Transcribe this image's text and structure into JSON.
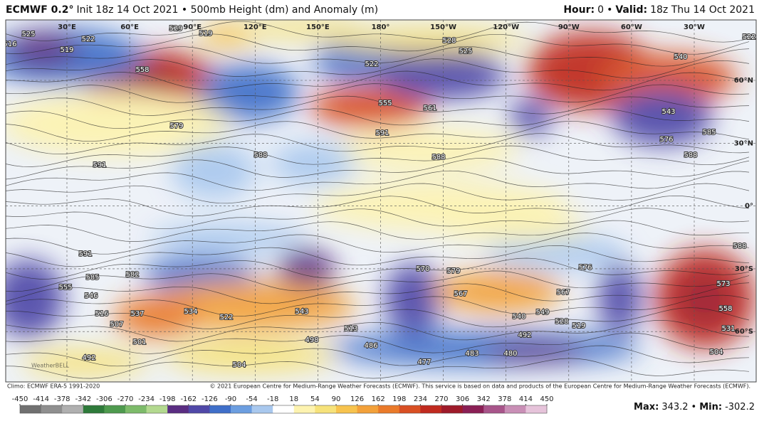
{
  "header": {
    "title": "ECMWF 0.2°",
    "subtitle": "Init 18z 14 Oct 2021 • 500mb Height (dm) and Anomaly (m)",
    "hour_label": "Hour:",
    "hour": "0",
    "separator": "•",
    "valid_label": "Valid:",
    "valid": "18z Thu 14 Oct 2021"
  },
  "map": {
    "longitudes": [
      "30°E",
      "60°E",
      "90°E",
      "120°E",
      "150°E",
      "180°",
      "150°W",
      "120°W",
      "90°W",
      "60°W",
      "30°W"
    ],
    "latitudes": [
      "60°N",
      "30°N",
      "0°",
      "30°S",
      "60°S"
    ],
    "watermark": "WeatherBELL",
    "contour_labels": [
      "525",
      "522",
      "519",
      "516",
      "558",
      "529",
      "519",
      "579",
      "588",
      "591",
      "522",
      "528",
      "525",
      "555",
      "561",
      "591",
      "588",
      "540",
      "576",
      "585",
      "588",
      "591",
      "585",
      "582",
      "555",
      "546",
      "516",
      "507",
      "537",
      "534",
      "522",
      "543",
      "513",
      "498",
      "486",
      "501",
      "492",
      "504",
      "477",
      "483",
      "480",
      "570",
      "579",
      "567",
      "540",
      "549",
      "528",
      "519",
      "492",
      "567",
      "576",
      "588",
      "573",
      "558",
      "531",
      "504",
      "543",
      "522"
    ]
  },
  "footer": {
    "climo": "Climo: ECMWF ERA-5 1991-2020",
    "copyright": "© 2021 European Centre for Medium-Range Weather Forecasts (ECMWF). This service is based on data and products of the European Centre for Medium-Range Weather Forecasts (ECMWF).",
    "max_label": "Max:",
    "max_value": 343.2,
    "separator": "•",
    "min_label": "Min:",
    "min_value": -302.2
  },
  "colorbar": {
    "ticks": [
      -450,
      -414,
      -378,
      -342,
      -306,
      -270,
      -234,
      -198,
      -162,
      -126,
      -90,
      -54,
      -18,
      18,
      54,
      90,
      126,
      162,
      198,
      234,
      270,
      306,
      342,
      378,
      414,
      450
    ],
    "colors": [
      "#707070",
      "#8f8f8f",
      "#b0b0b0",
      "#2e7a3a",
      "#4e9a4e",
      "#7dbb6a",
      "#b3d98f",
      "#5a2d82",
      "#5048a8",
      "#3f6fc9",
      "#6c9ee0",
      "#a9c8ee",
      "#ffffff",
      "#fdf3b0",
      "#f6e27a",
      "#f7c34e",
      "#f3a13a",
      "#ea7a2a",
      "#d94f23",
      "#c02a1f",
      "#9e1a2a",
      "#8a1f55",
      "#a8558a",
      "#c98fb6",
      "#e6c3da"
    ]
  }
}
